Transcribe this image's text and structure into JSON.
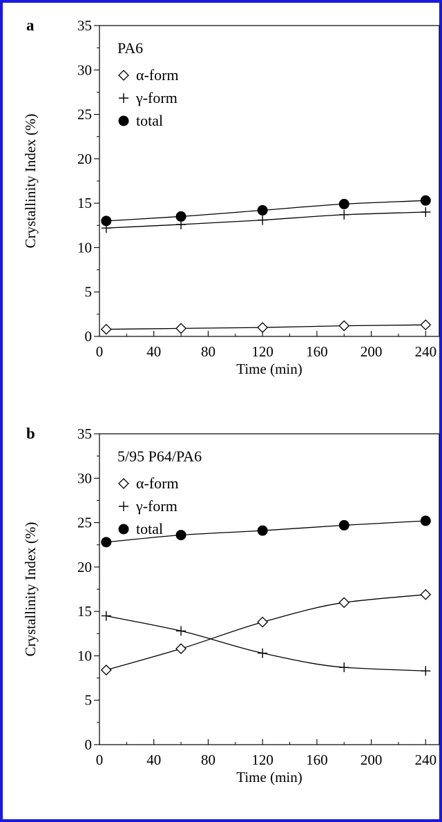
{
  "chart_data": [
    {
      "type": "line",
      "panel_label": "a",
      "legend_title": "PA6",
      "xlabel": "Time (min)",
      "ylabel": "Crystallinity Index (%)",
      "xlim": [
        0,
        250
      ],
      "ylim": [
        0,
        35
      ],
      "x_ticks": [
        "0",
        "40",
        "80",
        "120",
        "160",
        "200",
        "240"
      ],
      "y_ticks": [
        "0",
        "5",
        "10",
        "15",
        "20",
        "25",
        "30",
        "35"
      ],
      "legend_position": "top-left",
      "grid": false,
      "x": [
        5,
        60,
        120,
        180,
        240
      ],
      "series": [
        {
          "name": "α-form",
          "marker": "open-diamond",
          "values": [
            0.8,
            0.9,
            1.0,
            1.2,
            1.3
          ]
        },
        {
          "name": "γ-form",
          "marker": "plus",
          "values": [
            12.2,
            12.6,
            13.1,
            13.7,
            14.0
          ]
        },
        {
          "name": "total",
          "marker": "filled-circle",
          "values": [
            13.0,
            13.5,
            14.2,
            14.9,
            15.3
          ]
        }
      ]
    },
    {
      "type": "line",
      "panel_label": "b",
      "legend_title": "5/95 P64/PA6",
      "xlabel": "Time (min)",
      "ylabel": "Crystallinity Index (%)",
      "xlim": [
        0,
        250
      ],
      "ylim": [
        0,
        35
      ],
      "x_ticks": [
        "0",
        "40",
        "80",
        "120",
        "160",
        "200",
        "240"
      ],
      "y_ticks": [
        "0",
        "5",
        "10",
        "15",
        "20",
        "25",
        "30",
        "35"
      ],
      "legend_position": "top-left",
      "grid": false,
      "x": [
        5,
        60,
        120,
        180,
        240
      ],
      "series": [
        {
          "name": "α-form",
          "marker": "open-diamond",
          "values": [
            8.4,
            10.8,
            13.8,
            16.0,
            16.9
          ]
        },
        {
          "name": "γ-form",
          "marker": "plus",
          "values": [
            14.5,
            12.8,
            10.3,
            8.7,
            8.3
          ]
        },
        {
          "name": "total",
          "marker": "filled-circle",
          "values": [
            22.8,
            23.6,
            24.1,
            24.7,
            25.2
          ]
        }
      ]
    }
  ]
}
